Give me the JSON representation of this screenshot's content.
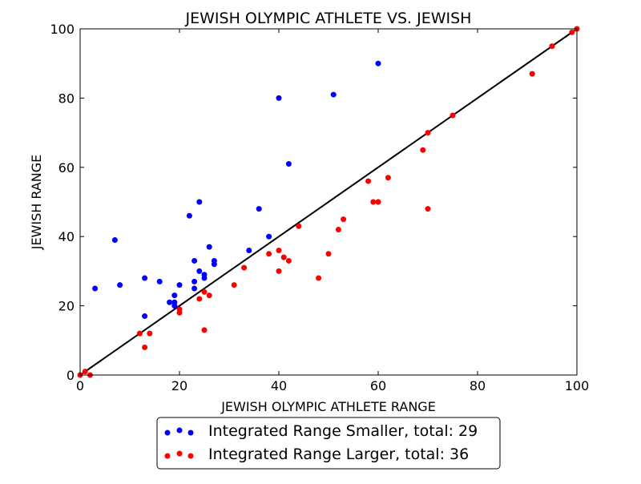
{
  "chart_data": {
    "type": "scatter",
    "title": "JEWISH OLYMPIC ATHLETE VS. JEWISH",
    "xlabel": "JEWISH OLYMPIC ATHLETE RANGE",
    "ylabel": "JEWISH RANGE",
    "xlim": [
      0,
      100
    ],
    "ylim": [
      0,
      100
    ],
    "xticks": [
      "0",
      "20",
      "40",
      "60",
      "80",
      "100"
    ],
    "yticks": [
      "0",
      "20",
      "40",
      "60",
      "80",
      "100"
    ],
    "grid": false,
    "legend_position": "bottom-center",
    "reference_line": {
      "x": [
        0,
        100
      ],
      "y": [
        0,
        100
      ],
      "color": "#000000"
    },
    "series": [
      {
        "name": "Integrated Range Smaller, total: 29",
        "color": "#0000ff",
        "points": [
          [
            3,
            25
          ],
          [
            7,
            39
          ],
          [
            8,
            26
          ],
          [
            13,
            28
          ],
          [
            13,
            17
          ],
          [
            16,
            27
          ],
          [
            18,
            21
          ],
          [
            19,
            23
          ],
          [
            19,
            21
          ],
          [
            19,
            20
          ],
          [
            20,
            26
          ],
          [
            22,
            46
          ],
          [
            23,
            33
          ],
          [
            23,
            27
          ],
          [
            23,
            25
          ],
          [
            24,
            50
          ],
          [
            24,
            30
          ],
          [
            25,
            29
          ],
          [
            25,
            28
          ],
          [
            26,
            37
          ],
          [
            27,
            33
          ],
          [
            27,
            32
          ],
          [
            34,
            36
          ],
          [
            36,
            48
          ],
          [
            38,
            40
          ],
          [
            40,
            80
          ],
          [
            42,
            61
          ],
          [
            51,
            81
          ],
          [
            60,
            90
          ]
        ]
      },
      {
        "name": "Integrated Range Larger, total: 36",
        "color": "#ff0000",
        "points": [
          [
            2,
            0
          ],
          [
            12,
            12
          ],
          [
            13,
            8
          ],
          [
            14,
            12
          ],
          [
            20,
            19
          ],
          [
            20,
            18
          ],
          [
            24,
            22
          ],
          [
            25,
            24
          ],
          [
            25,
            13
          ],
          [
            26,
            23
          ],
          [
            31,
            26
          ],
          [
            33,
            31
          ],
          [
            38,
            35
          ],
          [
            40,
            36
          ],
          [
            40,
            30
          ],
          [
            41,
            34
          ],
          [
            42,
            33
          ],
          [
            44,
            43
          ],
          [
            48,
            28
          ],
          [
            50,
            35
          ],
          [
            52,
            42
          ],
          [
            53,
            45
          ],
          [
            58,
            56
          ],
          [
            59,
            50
          ],
          [
            60,
            50
          ],
          [
            62,
            57
          ],
          [
            69,
            65
          ],
          [
            70,
            70
          ],
          [
            70,
            48
          ],
          [
            75,
            75
          ],
          [
            91,
            87
          ],
          [
            95,
            95
          ],
          [
            100,
            100
          ],
          [
            0,
            0
          ],
          [
            1,
            1
          ],
          [
            99,
            99
          ]
        ]
      }
    ]
  }
}
